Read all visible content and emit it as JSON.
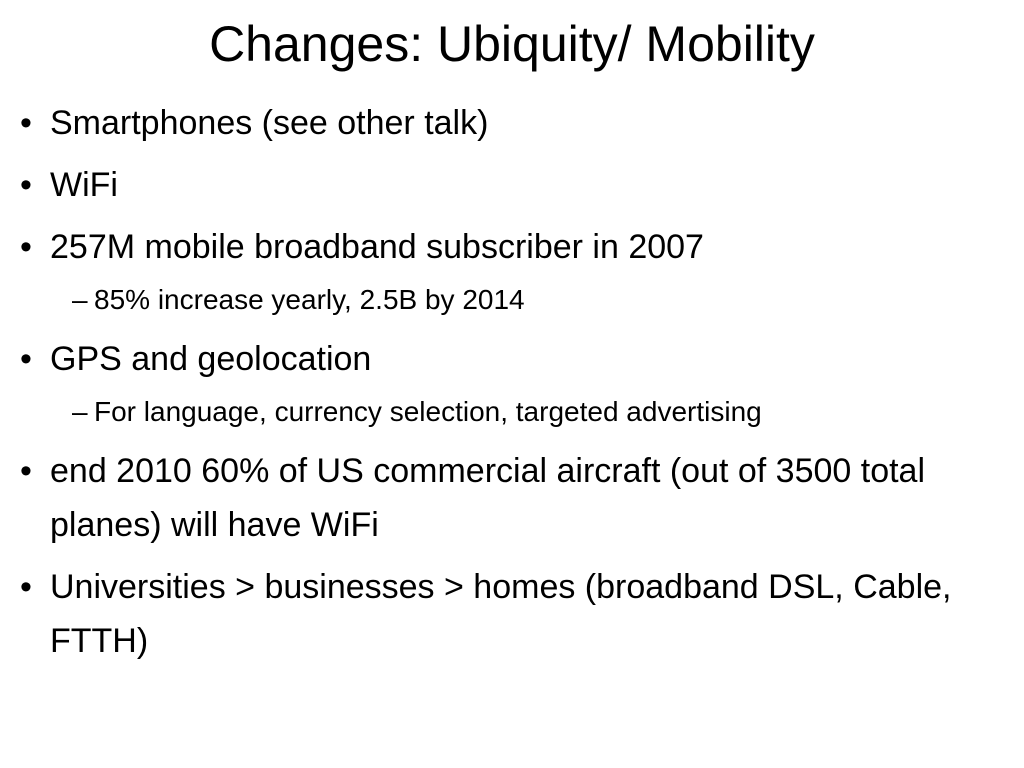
{
  "slide": {
    "title": "Changes: Ubiquity/ Mobility",
    "items": [
      {
        "text": "Smartphones (see other talk)"
      },
      {
        "text": "WiFi"
      },
      {
        "text": "257M mobile broadband subscriber in 2007"
      },
      {
        "text": "85% increase yearly, 2.5B by 2014"
      },
      {
        "text": "GPS and geolocation"
      },
      {
        "text": "For language, currency selection, targeted advertising"
      },
      {
        "text": "end 2010 60% of US commercial aircraft (out of 3500 total planes) will have WiFi"
      },
      {
        "text": "Universities > businesses > homes (broadband DSL, Cable, FTTH)"
      }
    ],
    "bullet_glyph": "•",
    "sub_glyph": "–"
  }
}
